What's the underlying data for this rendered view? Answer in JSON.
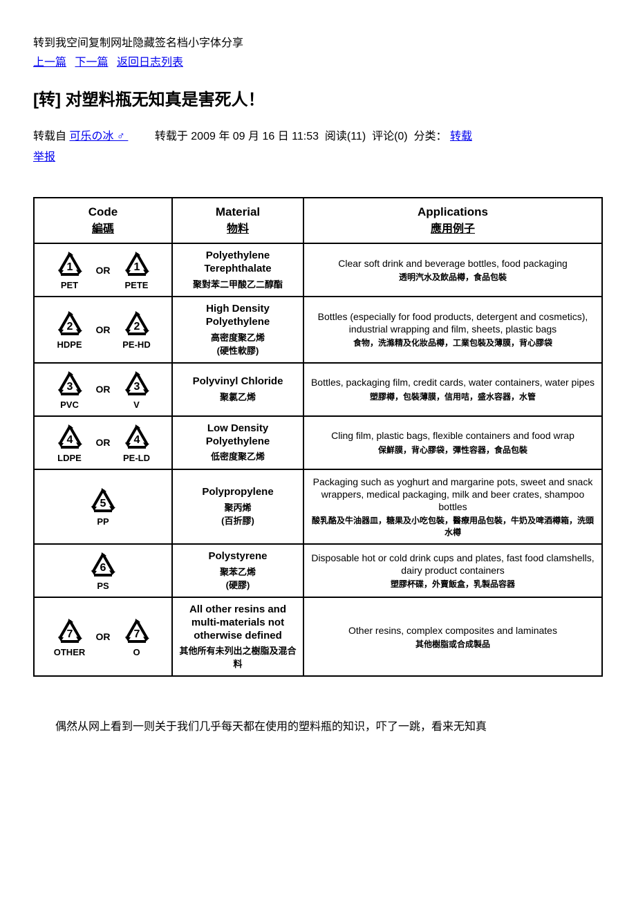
{
  "nav": {
    "topline": "转到我空间复制网址隐藏签名档小字体分享",
    "prev": "上一篇",
    "next": "下一篇",
    "back": "返回日志列表"
  },
  "title": "[转] 对塑料瓶无知真是害死人！",
  "meta": {
    "repost_from_label": "转载自",
    "repost_from_user": " 可乐の冰 ♂ ",
    "repost_at": "转载于 2009 年 09 月 16 日  11:53",
    "reads": "阅读(11)",
    "comments": "评论(0)",
    "category_label": "分类：",
    "category_link": " 转载 ",
    "report": "举报"
  },
  "table": {
    "header": {
      "code_en": "Code",
      "code_cn": "編碼",
      "mat_en": "Material",
      "mat_cn": "物料",
      "app_en": "Applications",
      "app_cn": "應用例子"
    },
    "rows": [
      {
        "codes": [
          {
            "num": "1",
            "abbr": "PET"
          },
          {
            "num": "1",
            "abbr": "PETE"
          }
        ],
        "or": "OR",
        "mat_en": "Polyethylene Terephthalate",
        "mat_cn": "聚對苯二甲酸乙二醇酯",
        "app_en": "Clear soft drink and beverage bottles, food packaging",
        "app_cn": "透明汽水及飲品樽，食品包裝"
      },
      {
        "codes": [
          {
            "num": "2",
            "abbr": "HDPE"
          },
          {
            "num": "2",
            "abbr": "PE-HD"
          }
        ],
        "or": "OR",
        "mat_en": "High Density Polyethylene",
        "mat_cn": "高密度聚乙烯\n(硬性軟膠)",
        "app_en": "Bottles (especially for food products, detergent and cosmetics), industrial wrapping and film, sheets, plastic bags",
        "app_cn": "食物，洗滌精及化妝品樽，工業包裝及薄膜，背心膠袋"
      },
      {
        "codes": [
          {
            "num": "3",
            "abbr": "PVC"
          },
          {
            "num": "3",
            "abbr": "V"
          }
        ],
        "or": "OR",
        "mat_en": "Polyvinyl Chloride",
        "mat_cn": "聚氯乙烯",
        "app_en": "Bottles, packaging film, credit cards, water containers, water pipes",
        "app_cn": "塑膠樽，包裝薄膜，信用咭，盛水容器，水管"
      },
      {
        "codes": [
          {
            "num": "4",
            "abbr": "LDPE"
          },
          {
            "num": "4",
            "abbr": "PE-LD"
          }
        ],
        "or": "OR",
        "mat_en": "Low Density Polyethylene",
        "mat_cn": "低密度聚乙烯",
        "app_en": "Cling film, plastic bags, flexible containers and food wrap",
        "app_cn": "保鮮膜，背心膠袋，彈性容器，食品包裝"
      },
      {
        "codes": [
          {
            "num": "5",
            "abbr": "PP"
          }
        ],
        "or": "",
        "mat_en": "Polypropylene",
        "mat_cn": "聚丙烯\n(百折膠)",
        "app_en": "Packaging such as yoghurt and margarine pots, sweet and snack wrappers, medical packaging, milk and beer crates, shampoo bottles",
        "app_cn": "酸乳酪及牛油器皿，糖果及小吃包裝，醫療用品包裝，牛奶及啤酒樽箱，洗頭水樽"
      },
      {
        "codes": [
          {
            "num": "6",
            "abbr": "PS"
          }
        ],
        "or": "",
        "mat_en": "Polystyrene",
        "mat_cn": "聚苯乙烯\n(硬膠)",
        "app_en": "Disposable hot or cold drink cups and plates, fast food clamshells, dairy product containers",
        "app_cn": "塑膠杯碟，外賣飯盒，乳製品容器"
      },
      {
        "codes": [
          {
            "num": "7",
            "abbr": "OTHER"
          },
          {
            "num": "7",
            "abbr": "O"
          }
        ],
        "or": "OR",
        "mat_en": "All other resins and multi-materials not otherwise defined",
        "mat_cn": "其他所有未列出之樹脂及混合料",
        "app_en": "Other resins, complex composites and laminates",
        "app_cn": "其他樹脂或合成製品"
      }
    ]
  },
  "body_text": "偶然从网上看到一则关于我们几乎每天都在使用的塑料瓶的知识，吓了一跳，看来无知真"
}
